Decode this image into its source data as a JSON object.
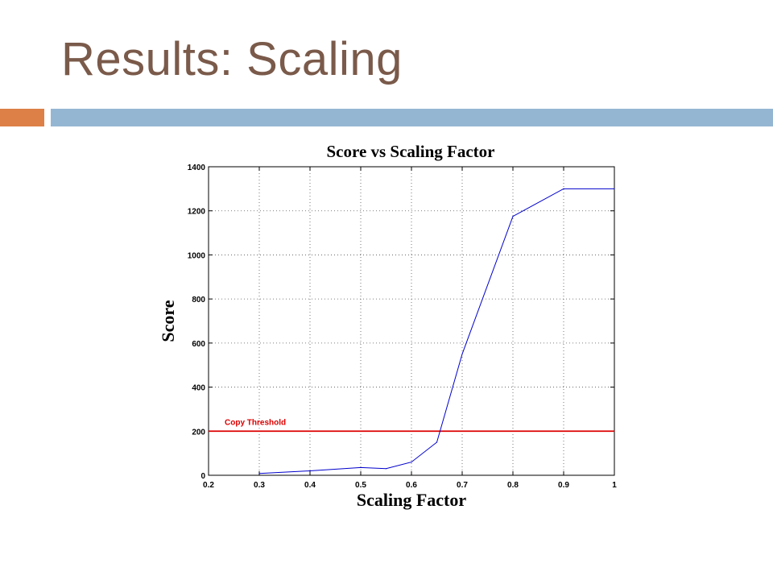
{
  "slide": {
    "title": "Results: Scaling",
    "title_color": "#7a5a4a",
    "accent_orange": "#dd8047",
    "accent_blue": "#94b6d2"
  },
  "chart_data": {
    "type": "line",
    "title": "Score vs Scaling Factor",
    "xlabel": "Scaling Factor",
    "ylabel": "Score",
    "xlim": [
      0.2,
      1
    ],
    "ylim": [
      0,
      1400
    ],
    "xticks": [
      0.2,
      0.3,
      0.4,
      0.5,
      0.6,
      0.7,
      0.8,
      0.9,
      1
    ],
    "xtick_labels": [
      "0.2",
      "0.3",
      "0.4",
      "0.5",
      "0.6",
      "0.7",
      "0.8",
      "0.9",
      "1"
    ],
    "yticks": [
      0,
      200,
      400,
      600,
      800,
      1000,
      1200,
      1400
    ],
    "ytick_labels": [
      "0",
      "200",
      "400",
      "600",
      "800",
      "1000",
      "1200",
      "1400"
    ],
    "grid": true,
    "series": [
      {
        "color": "#0000cc",
        "x": [
          0.3,
          0.4,
          0.5,
          0.55,
          0.6,
          0.65,
          0.7,
          0.8,
          0.9,
          1.0
        ],
        "y": [
          8,
          20,
          35,
          30,
          60,
          150,
          550,
          1175,
          1300,
          1300
        ]
      }
    ],
    "threshold": {
      "label": "Copy Threshold",
      "value": 200,
      "color": "#dd0000"
    }
  }
}
